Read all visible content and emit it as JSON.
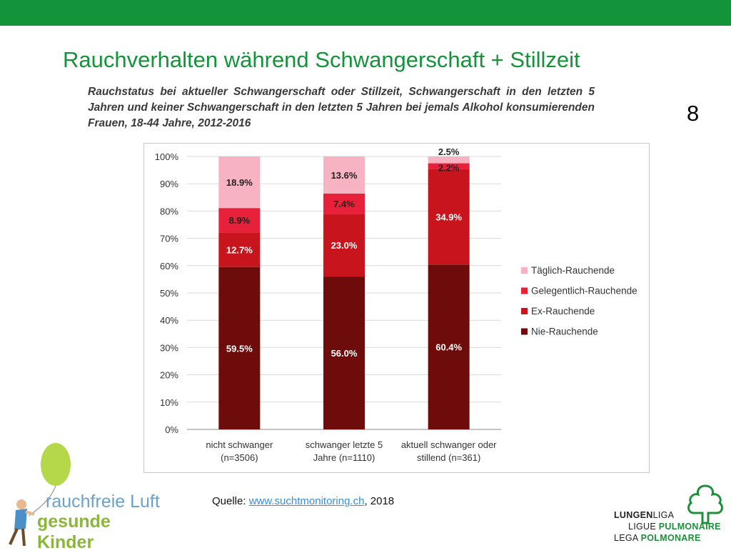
{
  "slide": {
    "title": "Rauchverhalten während Schwangerschaft + Stillzeit",
    "number": "8",
    "accent_color": "#13933a",
    "source_prefix": "Quelle: ",
    "source_link": "www.suchtmonitoring.ch",
    "source_suffix": ", 2018"
  },
  "logos": {
    "left_line1": "rauchfreie Luft",
    "left_line2": "gesunde Kinder",
    "right_line1_a": "LUNGEN",
    "right_line1_b": "LIGA",
    "right_line2_a": "LIGUE ",
    "right_line2_b": "PULMONAIRE",
    "right_line3_a": "LEGA ",
    "right_line3_b": "POLMONARE"
  },
  "chart_data": {
    "type": "bar",
    "stacked": true,
    "title": "Rauchstatus bei aktueller Schwangerschaft oder Stillzeit, Schwangerschaft in den letzten 5 Jahren und keiner Schwangerschaft in den letzten 5 Jahren bei jemals Alkohol konsumierenden Frauen, 18-44 Jahre, 2012-2016",
    "categories": [
      [
        "nicht schwanger",
        "(n=3506)"
      ],
      [
        "schwanger letzte 5",
        "Jahre (n=1110)"
      ],
      [
        "aktuell schwanger oder",
        "stillend (n=361)"
      ]
    ],
    "series": [
      {
        "name": "Nie-Rauchende",
        "values": [
          59.5,
          56.0,
          60.4
        ],
        "color": "#6e0b0b",
        "label_color": "#ffffff"
      },
      {
        "name": "Ex-Rauchende",
        "values": [
          12.7,
          23.0,
          34.9
        ],
        "color": "#c8141d",
        "label_color": "#ffffff"
      },
      {
        "name": "Gelegentlich-Rauchende",
        "values": [
          8.9,
          7.4,
          2.2
        ],
        "color": "#e8213a",
        "label_color": "#222222"
      },
      {
        "name": "Täglich-Rauchende",
        "values": [
          18.9,
          13.6,
          2.5
        ],
        "color": "#f7b3c2",
        "label_color": "#222222"
      }
    ],
    "legend_order": [
      "Täglich-Rauchende",
      "Gelegentlich-Rauchende",
      "Ex-Rauchende",
      "Nie-Rauchende"
    ],
    "legend_position": "right",
    "yticks": [
      "0%",
      "10%",
      "20%",
      "30%",
      "40%",
      "50%",
      "60%",
      "70%",
      "80%",
      "90%",
      "100%"
    ],
    "ylim": [
      0,
      100
    ],
    "grid": true
  }
}
